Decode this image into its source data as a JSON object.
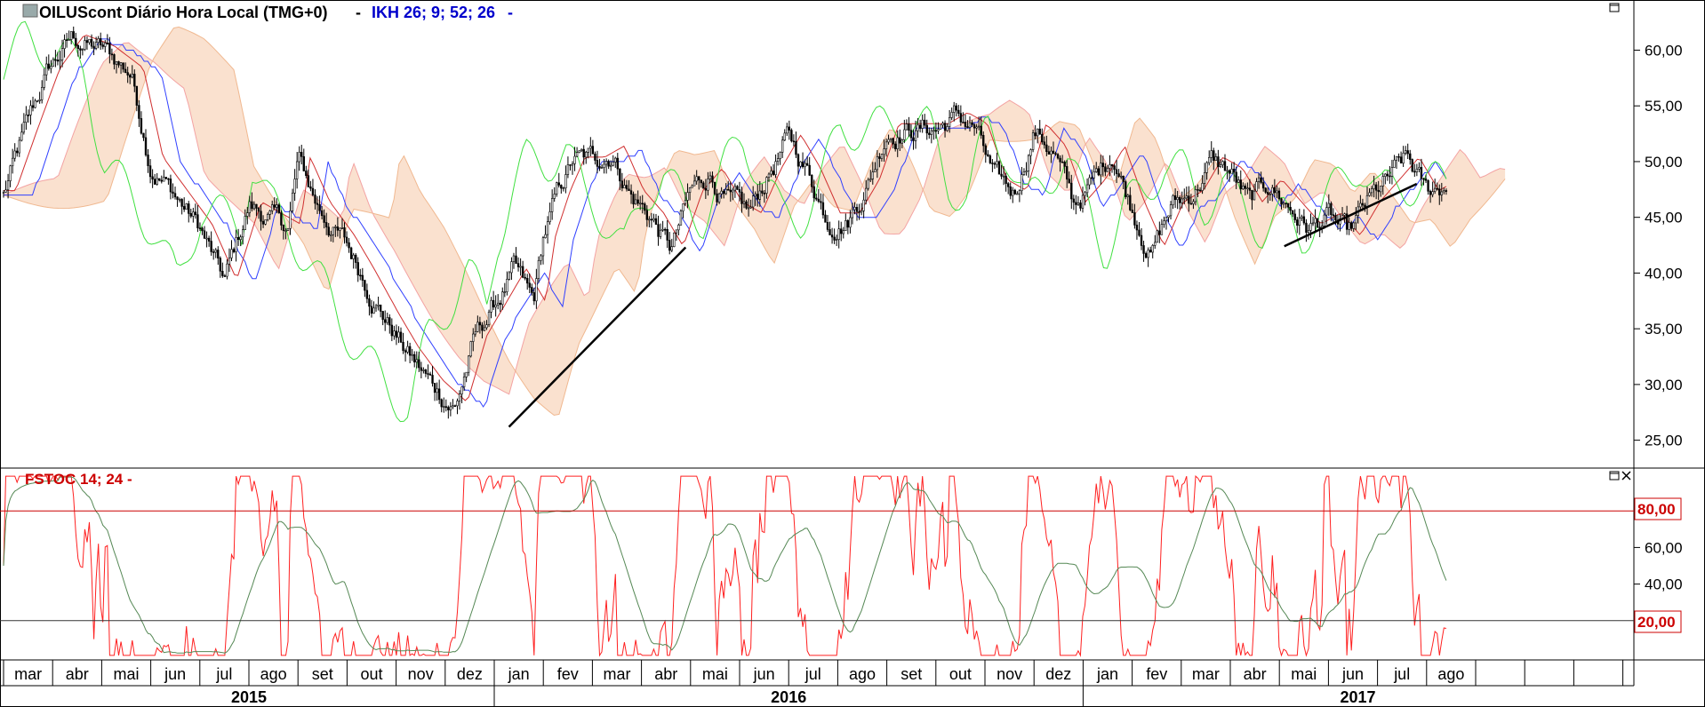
{
  "header": {
    "symbol": "OILUScont",
    "title": "OILUScont Diário Hora Local (TMG+0)",
    "separator": "-",
    "indicator": "IKH 26; 9; 52; 26",
    "indicator_suffix": "-"
  },
  "oscillator": {
    "title": "FSTOC 14; 24 -",
    "upper_level_label": "80,00",
    "lower_level_label": "20,00",
    "upper_level": 80,
    "lower_level": 20,
    "line_colors": {
      "fast": "#ff2020",
      "slow": "#558855",
      "levels": "#cc0000"
    }
  },
  "icons": {
    "maximize": "maximize-icon",
    "close": "close-icon",
    "symbol": "chart-symbol-icon"
  },
  "chart_data": [
    {
      "type": "candlestick",
      "title": "OILUScont Diário Hora Local (TMG+0)",
      "indicator": "IKH 26; 9; 52; 26",
      "ylim": [
        22.5,
        64.5
      ],
      "yticks": [
        "25,00",
        "30,00",
        "35,00",
        "40,00",
        "45,00",
        "50,00",
        "55,00",
        "60,00"
      ],
      "ytick_values": [
        25,
        30,
        35,
        40,
        45,
        50,
        55,
        60
      ],
      "months": [
        "mar",
        "abr",
        "mai",
        "jun",
        "jul",
        "ago",
        "set",
        "out",
        "nov",
        "dez",
        "jan",
        "fev",
        "mar",
        "abr",
        "mai",
        "jun",
        "jul",
        "ago",
        "set",
        "out",
        "nov",
        "dez",
        "jan",
        "fev",
        "mar",
        "abr",
        "mai",
        "jun",
        "jul",
        "ago"
      ],
      "years": [
        "2015",
        "2016",
        "2017"
      ],
      "price_path": {
        "t": [
          0,
          0.4,
          0.9,
          1.4,
          2.0,
          2.6,
          3.0,
          3.5,
          4.0,
          4.5,
          5.0,
          5.4,
          5.8,
          6.0,
          6.4,
          6.9,
          7.3,
          7.8,
          8.2,
          8.7,
          9.2,
          9.6,
          10.0,
          10.4,
          10.8,
          11.0,
          11.3,
          11.6,
          12.0,
          12.4,
          12.8,
          13.2,
          13.6,
          14.0,
          14.4,
          14.8,
          15.2,
          15.6,
          16.0,
          16.4,
          16.8,
          17.2,
          17.6,
          18.0,
          18.5,
          19.0,
          19.4,
          19.8,
          20.2,
          20.6,
          21.0,
          21.4,
          21.8,
          22.2,
          22.6,
          23.0,
          23.4,
          23.8,
          24.2,
          24.6,
          25.0,
          25.4,
          25.8,
          26.2,
          26.6,
          27.0,
          27.4,
          27.8,
          28.2,
          28.6,
          29.0,
          29.4
        ],
        "v": [
          47,
          52,
          58,
          61,
          60,
          58,
          50,
          47,
          44,
          39,
          46,
          45,
          44,
          50,
          46,
          43,
          40,
          36,
          33,
          30,
          28,
          34,
          37,
          40,
          37,
          43,
          47,
          50,
          50,
          51,
          47,
          45,
          42,
          47,
          49,
          46,
          45,
          49,
          52,
          49,
          45,
          45,
          48,
          53,
          53,
          53,
          54,
          53,
          48,
          47,
          53,
          51,
          46,
          48,
          51,
          46,
          42,
          46,
          47,
          50,
          49,
          46,
          48,
          46,
          44,
          45,
          43,
          46,
          48,
          50,
          47,
          48
        ]
      },
      "trendlines": [
        {
          "from": [
            10.3,
            26.2
          ],
          "to": [
            13.9,
            42.3
          ]
        },
        {
          "from": [
            26.1,
            42.4
          ],
          "to": [
            28.8,
            48.0
          ]
        }
      ]
    },
    {
      "type": "line",
      "title": "FSTOC 14; 24 -",
      "ylim": [
        0,
        100
      ],
      "yticks": [
        "20,00",
        "40,00",
        "60,00",
        "80,00"
      ],
      "ytick_values": [
        20,
        40,
        60,
        80
      ],
      "reference_levels": [
        80,
        20
      ]
    }
  ]
}
